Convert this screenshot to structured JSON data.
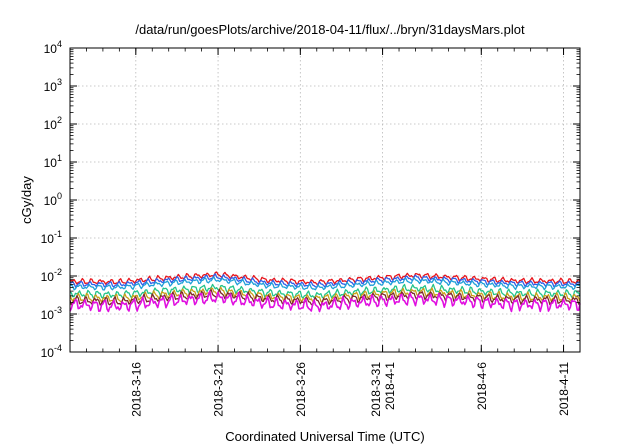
{
  "chart_data": {
    "type": "line",
    "title": "/data/run/goesPlots/archive/2018-04-11/flux/../bryn/31daysMars.plot",
    "xlabel": "Coordinated Universal Time (UTC)",
    "ylabel": "cGy/day",
    "y_scale": "log",
    "ylim": [
      0.0001,
      10000
    ],
    "y_ticks": [
      {
        "base": "10",
        "exp": "4"
      },
      {
        "base": "10",
        "exp": "3"
      },
      {
        "base": "10",
        "exp": "2"
      },
      {
        "base": "10",
        "exp": "1"
      },
      {
        "base": "10",
        "exp": "0"
      },
      {
        "base": "10",
        "exp": "-1"
      },
      {
        "base": "10",
        "exp": "-2"
      },
      {
        "base": "10",
        "exp": "-3"
      },
      {
        "base": "10",
        "exp": "-4"
      }
    ],
    "xlim": [
      "2018-03-12",
      "2018-04-12"
    ],
    "x_ticks": [
      {
        "date": "2018-03-16",
        "lines": [
          "2018-3-16"
        ]
      },
      {
        "date": "2018-03-21",
        "lines": [
          "2018-3-21"
        ]
      },
      {
        "date": "2018-03-26",
        "lines": [
          "2018-3-26"
        ]
      },
      {
        "date": "2018-03-31",
        "lines": [
          "2018-3-31",
          "2018-4-1"
        ]
      },
      {
        "date": "2018-04-06",
        "lines": [
          "2018-4-6"
        ]
      },
      {
        "date": "2018-04-11",
        "lines": [
          "2018-4-11"
        ]
      }
    ],
    "grid": true,
    "legend": "none",
    "series": [
      {
        "color": "#e8141b",
        "base": 0.0072,
        "amp": 0.18,
        "x": [
          "2018-03-12",
          "2018-03-15",
          "2018-03-18",
          "2018-03-21",
          "2018-03-24",
          "2018-03-27",
          "2018-03-30",
          "2018-04-02",
          "2018-04-05",
          "2018-04-08",
          "2018-04-12"
        ],
        "y": [
          0.0072,
          0.007,
          0.009,
          0.011,
          0.0078,
          0.0068,
          0.0085,
          0.0105,
          0.0088,
          0.0075,
          0.0072
        ]
      },
      {
        "color": "#2f5ee8",
        "base": 0.0062,
        "amp": 0.18,
        "x": [
          "2018-03-12",
          "2018-03-15",
          "2018-03-18",
          "2018-03-21",
          "2018-03-24",
          "2018-03-27",
          "2018-03-30",
          "2018-04-02",
          "2018-04-05",
          "2018-04-08",
          "2018-04-12"
        ],
        "y": [
          0.0062,
          0.006,
          0.0078,
          0.0095,
          0.0066,
          0.0058,
          0.0073,
          0.009,
          0.0076,
          0.0064,
          0.0062
        ]
      },
      {
        "color": "#1fa0d8",
        "base": 0.0052,
        "amp": 0.18,
        "x": [
          "2018-03-12",
          "2018-03-15",
          "2018-03-18",
          "2018-03-21",
          "2018-03-24",
          "2018-03-27",
          "2018-03-30",
          "2018-04-02",
          "2018-04-05",
          "2018-04-08",
          "2018-04-12"
        ],
        "y": [
          0.0052,
          0.005,
          0.0065,
          0.008,
          0.0056,
          0.0049,
          0.0061,
          0.0076,
          0.0064,
          0.0054,
          0.0052
        ]
      },
      {
        "color": "#22c48a",
        "base": 0.0034,
        "amp": 0.25,
        "x": [
          "2018-03-12",
          "2018-03-15",
          "2018-03-18",
          "2018-03-21",
          "2018-03-24",
          "2018-03-27",
          "2018-03-30",
          "2018-04-02",
          "2018-04-05",
          "2018-04-08",
          "2018-04-12"
        ],
        "y": [
          0.0034,
          0.0032,
          0.0042,
          0.005,
          0.0036,
          0.0031,
          0.004,
          0.0048,
          0.0041,
          0.0035,
          0.0034
        ]
      },
      {
        "color": "#c9a018",
        "base": 0.0027,
        "amp": 0.28,
        "x": [
          "2018-03-12",
          "2018-03-15",
          "2018-03-18",
          "2018-03-21",
          "2018-03-24",
          "2018-03-27",
          "2018-03-30",
          "2018-04-02",
          "2018-04-05",
          "2018-04-08",
          "2018-04-12"
        ],
        "y": [
          0.0027,
          0.0025,
          0.0033,
          0.004,
          0.0029,
          0.0025,
          0.0032,
          0.0038,
          0.0033,
          0.0028,
          0.0027
        ]
      },
      {
        "color": "#7a2a2a",
        "base": 0.0023,
        "amp": 0.28,
        "x": [
          "2018-03-12",
          "2018-03-15",
          "2018-03-18",
          "2018-03-21",
          "2018-03-24",
          "2018-03-27",
          "2018-03-30",
          "2018-04-02",
          "2018-04-05",
          "2018-04-08",
          "2018-04-12"
        ],
        "y": [
          0.0023,
          0.0021,
          0.0028,
          0.0034,
          0.0025,
          0.0021,
          0.0027,
          0.0032,
          0.0028,
          0.0024,
          0.0023
        ]
      },
      {
        "color": "#e010e0",
        "base": 0.0018,
        "amp": 0.4,
        "x": [
          "2018-03-12",
          "2018-03-15",
          "2018-03-18",
          "2018-03-21",
          "2018-03-24",
          "2018-03-27",
          "2018-03-30",
          "2018-04-02",
          "2018-04-05",
          "2018-04-08",
          "2018-04-12"
        ],
        "y": [
          0.0018,
          0.0016,
          0.0022,
          0.0027,
          0.0019,
          0.0016,
          0.0021,
          0.0025,
          0.0022,
          0.0018,
          0.0018
        ]
      }
    ]
  }
}
